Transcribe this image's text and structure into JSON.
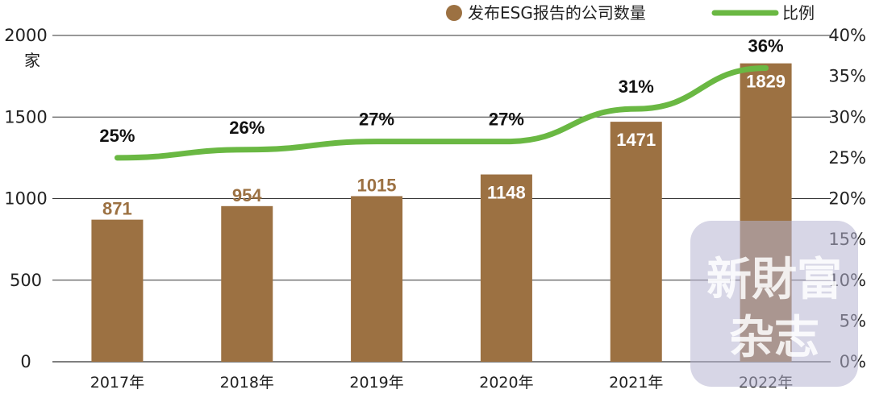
{
  "chart_data": {
    "type": "bar",
    "categories": [
      "2017年",
      "2018年",
      "2019年",
      "2020年",
      "2021年",
      "2022年"
    ],
    "series": [
      {
        "name": "发布ESG报告的公司数量",
        "type": "bar",
        "axis": "left",
        "values": [
          871,
          954,
          1015,
          1148,
          1471,
          1829
        ],
        "color": "#9c7142"
      },
      {
        "name": "比例",
        "type": "line",
        "axis": "right",
        "values": [
          25,
          26,
          27,
          27,
          31,
          36
        ],
        "labels": [
          "25%",
          "26%",
          "27%",
          "27%",
          "31%",
          "36%"
        ],
        "color": "#6ab843"
      }
    ],
    "y_left": {
      "min": 0,
      "max": 2000,
      "ticks": [
        "0",
        "500",
        "1000",
        "1500",
        "2000"
      ],
      "unit": "家"
    },
    "y_right": {
      "min": 0,
      "max": 40,
      "ticks": [
        "0%",
        "5%",
        "10%",
        "15%",
        "20%",
        "25%",
        "30%",
        "35%",
        "40%"
      ]
    },
    "grid": true,
    "legend_position": "top-right",
    "value_label_colors": {
      "outside": "#9c7142",
      "inside": "#ffffff"
    }
  },
  "watermark": {
    "line1": "新財富",
    "line2": "杂志"
  }
}
